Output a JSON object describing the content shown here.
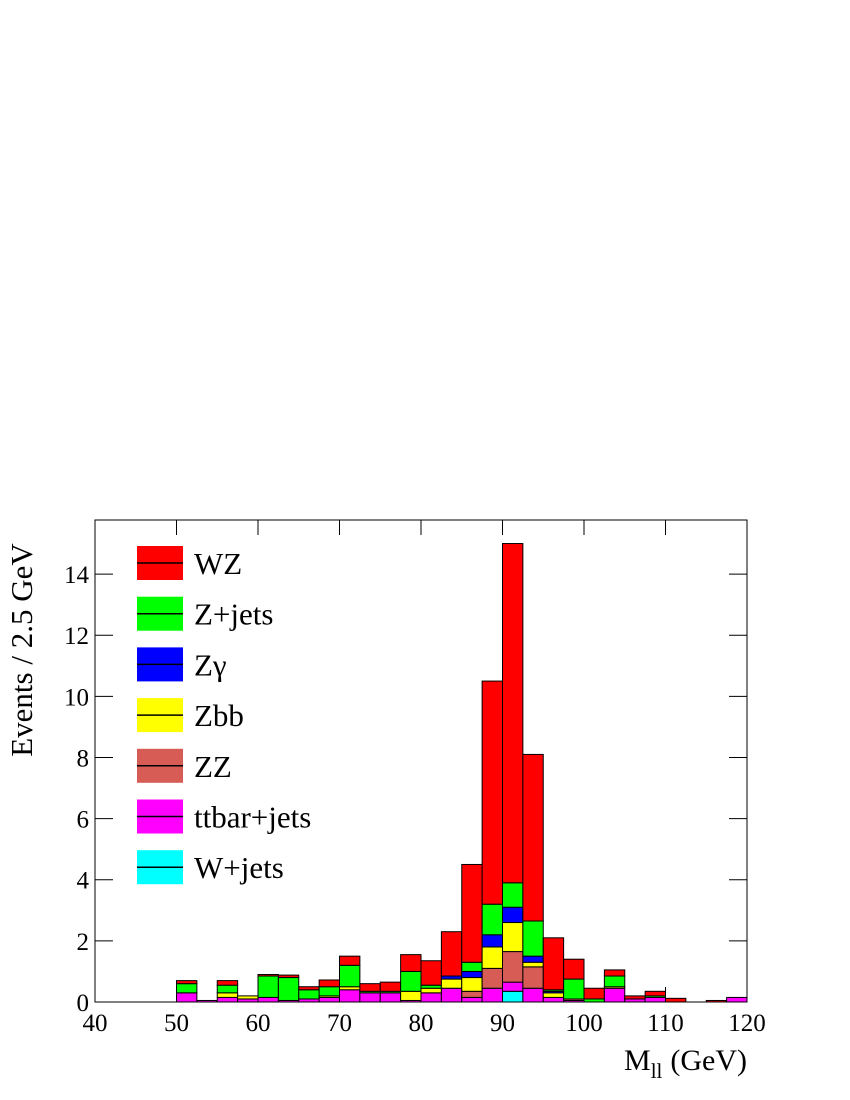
{
  "chart_data": {
    "type": "stacked_histogram",
    "ylabel": "Events / 2.5 GeV",
    "xlabel": {
      "main": "M",
      "sub": "ll",
      "rest": "(GeV)"
    },
    "bins": [
      40,
      42.5,
      45,
      47.5,
      50,
      52.5,
      55,
      57.5,
      60,
      62.5,
      65,
      67.5,
      70,
      72.5,
      75,
      77.5,
      80,
      82.5,
      85,
      87.5,
      90,
      92.5,
      95,
      97.5,
      100,
      102.5,
      105,
      107.5,
      110,
      112.5,
      115,
      117.5,
      120
    ],
    "series": [
      {
        "name": "WZ",
        "color": "#ff0000",
        "values": [
          0,
          0,
          0,
          0,
          0.1,
          0,
          0.15,
          0,
          0.05,
          0.08,
          0.1,
          0.22,
          0.3,
          0.25,
          0.3,
          0.55,
          0.8,
          1.45,
          3.2,
          7.3,
          11.1,
          5.45,
          1.7,
          0.65,
          0.35,
          0.2,
          0.1,
          0.15,
          0.12,
          0,
          0.05,
          0
        ]
      },
      {
        "name": "Z+jets",
        "color": "#00ff00",
        "values": [
          0,
          0,
          0,
          0,
          0.3,
          0,
          0.25,
          0,
          0.7,
          0.75,
          0.3,
          0.3,
          0.7,
          0.05,
          0.05,
          0.65,
          0.1,
          0,
          0.3,
          1.0,
          0.8,
          1.15,
          0.05,
          0.65,
          0.1,
          0.35,
          0,
          0.05,
          0,
          0,
          0,
          0
        ]
      },
      {
        "name": "Zγ",
        "color": "#0000ff",
        "values": [
          0,
          0,
          0,
          0,
          0,
          0,
          0,
          0,
          0,
          0,
          0,
          0,
          0,
          0,
          0,
          0,
          0,
          0.1,
          0.2,
          0.4,
          0.5,
          0.2,
          0.05,
          0,
          0,
          0,
          0,
          0,
          0,
          0,
          0,
          0
        ]
      },
      {
        "name": "Zbb",
        "color": "#ffff00",
        "values": [
          0,
          0,
          0,
          0,
          0,
          0,
          0.15,
          0.1,
          0,
          0,
          0,
          0.05,
          0.1,
          0,
          0,
          0.3,
          0.15,
          0.3,
          0.45,
          0.7,
          0.95,
          0.15,
          0.15,
          0,
          0,
          0.05,
          0,
          0,
          0,
          0,
          0,
          0
        ]
      },
      {
        "name": "ZZ",
        "color": "#d65c55",
        "values": [
          0,
          0,
          0,
          0,
          0,
          0,
          0,
          0,
          0,
          0,
          0,
          0,
          0,
          0,
          0,
          0,
          0,
          0,
          0.2,
          0.65,
          1.0,
          0.7,
          0,
          0.05,
          0,
          0,
          0,
          0,
          0,
          0,
          0,
          0
        ]
      },
      {
        "name": "ttbar+jets",
        "color": "#ff00ff",
        "values": [
          0,
          0,
          0,
          0,
          0.3,
          0.05,
          0.15,
          0.1,
          0.15,
          0.05,
          0.1,
          0.15,
          0.4,
          0.3,
          0.3,
          0.05,
          0.3,
          0.45,
          0.15,
          0.45,
          0.3,
          0.45,
          0.15,
          0.05,
          0,
          0.45,
          0.1,
          0.15,
          0,
          0,
          0,
          0.15
        ]
      },
      {
        "name": "W+jets",
        "color": "#00ffff",
        "values": [
          0,
          0,
          0,
          0,
          0,
          0,
          0,
          0,
          0,
          0,
          0,
          0,
          0,
          0,
          0,
          0,
          0,
          0,
          0,
          0,
          0.35,
          0,
          0,
          0,
          0,
          0,
          0,
          0,
          0,
          0,
          0,
          0
        ]
      }
    ],
    "xlim": [
      40,
      120
    ],
    "xticks": [
      40,
      50,
      60,
      70,
      80,
      90,
      100,
      110,
      120
    ],
    "ylim": [
      0,
      15.77
    ],
    "yticks": [
      0,
      2,
      4,
      6,
      8,
      10,
      12,
      14
    ],
    "legend": "top-left"
  }
}
